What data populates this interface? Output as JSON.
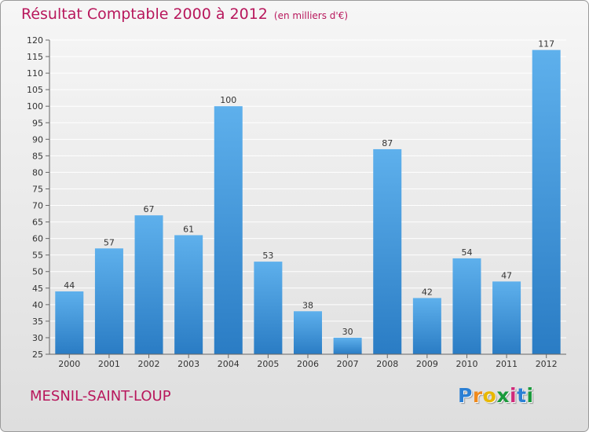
{
  "chart_data": {
    "type": "bar",
    "title": "Résultat Comptable 2000 à 2012",
    "subtitle": "(en milliers d'€)",
    "categories": [
      "2000",
      "2001",
      "2002",
      "2003",
      "2004",
      "2005",
      "2006",
      "2007",
      "2008",
      "2009",
      "2010",
      "2011",
      "2012"
    ],
    "values": [
      44,
      57,
      67,
      61,
      100,
      53,
      38,
      30,
      87,
      42,
      54,
      47,
      117
    ],
    "ylim": [
      25,
      120
    ],
    "yticks": [
      25,
      30,
      35,
      40,
      45,
      50,
      55,
      60,
      65,
      70,
      75,
      80,
      85,
      90,
      95,
      100,
      105,
      110,
      115,
      120
    ],
    "xlabel": "",
    "ylabel": "",
    "grid": true,
    "data_labels": true
  },
  "commune": "MESNIL-SAINT-LOUP",
  "logo": {
    "text": "Proxiti",
    "letters": [
      "P",
      "r",
      "o",
      "x",
      "i",
      "t",
      "i"
    ],
    "colors": [
      "#2b7fd4",
      "#f08a1c",
      "#e8b800",
      "#1a9a3c",
      "#d02a7a",
      "#2b7fd4",
      "#1a9a3c"
    ]
  },
  "colors": {
    "bar_light": "#5eb0ec",
    "bar_dark": "#2a7cc4",
    "title": "#b8175c",
    "grid": "#ffffff",
    "axis": "#666666"
  }
}
